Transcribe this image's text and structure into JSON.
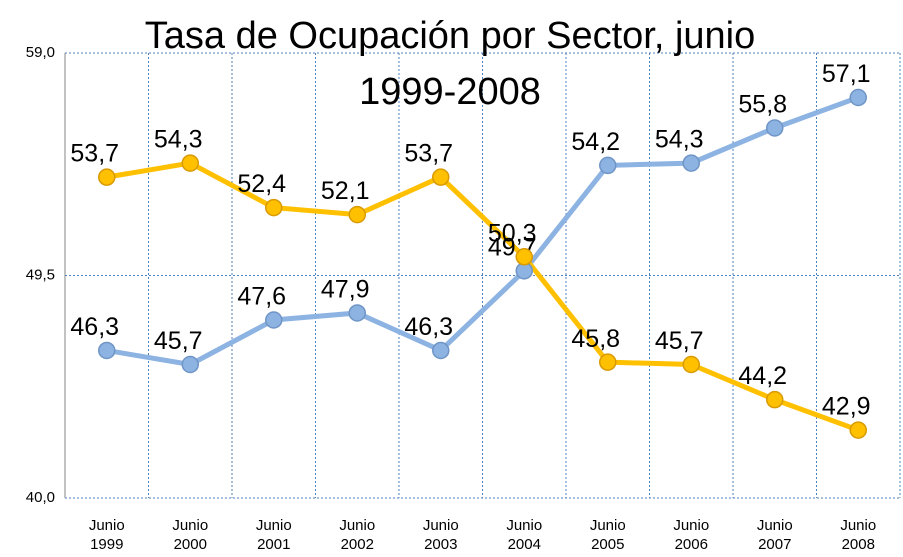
{
  "chart_data": {
    "type": "line",
    "title": "Tasa de Ocupación por Sector, junio 1999-2008",
    "categories": [
      "Junio 1999",
      "Junio 2000",
      "Junio 2001",
      "Junio 2002",
      "Junio 2003",
      "Junio 2004",
      "Junio 2005",
      "Junio 2006",
      "Junio 2007",
      "Junio 2008"
    ],
    "series": [
      {
        "color": "#8db3e2",
        "values": [
          46.3,
          45.7,
          47.6,
          47.9,
          46.3,
          49.7,
          54.2,
          54.3,
          55.8,
          57.1
        ],
        "value_labels": [
          "46,3",
          "45,7",
          "47,6",
          "47,9",
          "46,3",
          "49,7",
          "54,2",
          "54,3",
          "55,8",
          "57,1"
        ]
      },
      {
        "color": "#ffc000",
        "values": [
          53.7,
          54.3,
          52.4,
          52.1,
          53.7,
          50.3,
          45.8,
          45.7,
          44.2,
          42.9
        ],
        "value_labels": [
          "53,7",
          "54,3",
          "52,4",
          "52,1",
          "53,7",
          "50,3",
          "45,8",
          "45,7",
          "44,2",
          "42,9"
        ]
      }
    ],
    "ylim": [
      40,
      59
    ],
    "yticks": [
      {
        "value": 40,
        "label": "40,0"
      },
      {
        "value": 49.5,
        "label": "49,5"
      },
      {
        "value": 59,
        "label": "59,0"
      }
    ],
    "grid": true
  }
}
